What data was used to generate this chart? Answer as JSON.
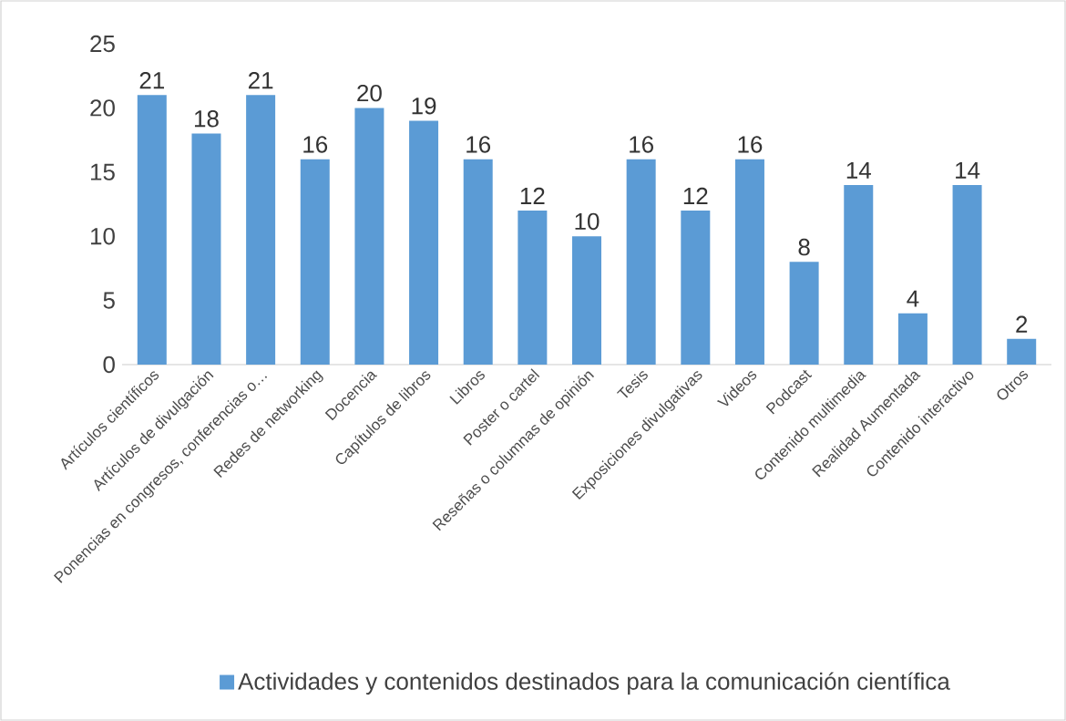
{
  "chart_data": {
    "type": "bar",
    "categories": [
      "Artículos científicos",
      "Artículos de divulgación",
      "Ponencias en congresos, conferencias o…",
      "Redes de networking",
      "Docencia",
      "Capítulos de libros",
      "Libros",
      "Poster o cartel",
      "Reseñas o columnas de opinión",
      "Tesis",
      "Exposiciones divulgativas",
      "Videos",
      "Podcast",
      "Contenido multimedia",
      "Realidad Aumentada",
      "Contenido interactivo",
      "Otros"
    ],
    "series": [
      {
        "name": "Actividades y contenidos destinados para la comunicación científica",
        "color": "#5b9bd5",
        "values": [
          21,
          18,
          21,
          16,
          20,
          19,
          16,
          12,
          10,
          16,
          12,
          16,
          8,
          14,
          4,
          14,
          2
        ]
      }
    ],
    "ylim": [
      0,
      25
    ],
    "yticks": [
      0,
      5,
      10,
      15,
      20,
      25
    ],
    "data_labels": true,
    "legend": "bottom"
  }
}
